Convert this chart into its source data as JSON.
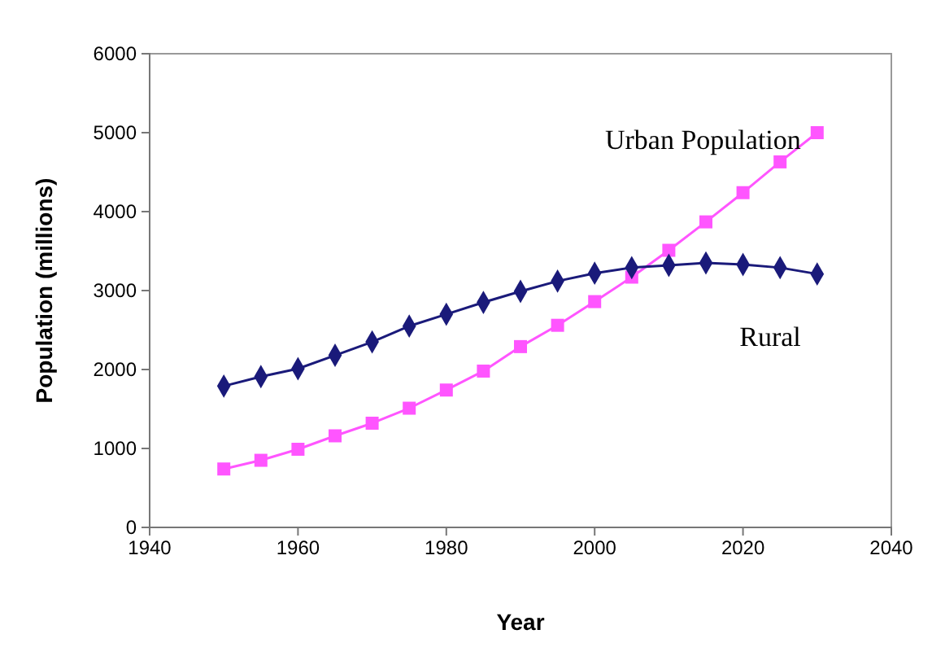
{
  "chart_data": {
    "type": "line",
    "xlabel": "Year",
    "ylabel": "Population (millions)",
    "x": [
      1950,
      1955,
      1960,
      1965,
      1970,
      1975,
      1980,
      1985,
      1990,
      1995,
      2000,
      2005,
      2010,
      2015,
      2020,
      2025,
      2030
    ],
    "series": [
      {
        "name": "Urban Population",
        "color": "#ff55ff",
        "marker": "square",
        "values": [
          740,
          850,
          990,
          1160,
          1320,
          1510,
          1740,
          1980,
          2290,
          2560,
          2860,
          3170,
          3510,
          3870,
          4240,
          4630,
          5000
        ]
      },
      {
        "name": "Rural",
        "color": "#1a1a7a",
        "marker": "diamond",
        "values": [
          1790,
          1910,
          2010,
          2180,
          2350,
          2550,
          2700,
          2850,
          2990,
          3120,
          3220,
          3290,
          3320,
          3350,
          3330,
          3290,
          3210
        ]
      }
    ],
    "xlim": [
      1940,
      2040
    ],
    "xticks": [
      1940,
      1960,
      1980,
      2000,
      2020,
      2040
    ],
    "ylim": [
      0,
      6000
    ],
    "yticks": [
      0,
      1000,
      2000,
      3000,
      4000,
      5000,
      6000
    ],
    "grid": false,
    "legend": false
  }
}
